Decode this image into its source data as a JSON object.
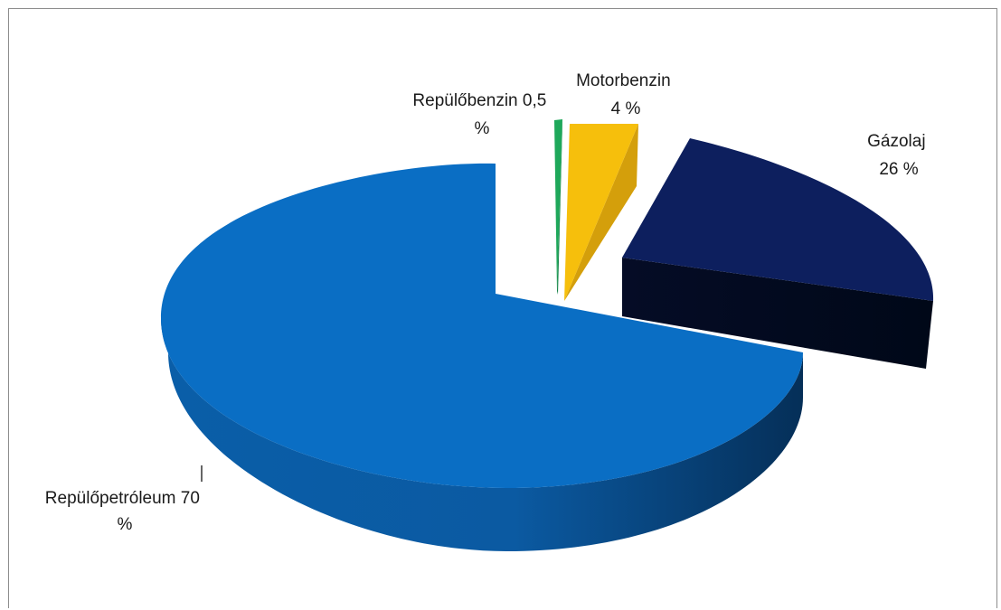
{
  "chart_data": {
    "type": "pie",
    "style": "3d-exploded",
    "title": "",
    "slices": [
      {
        "line1": "Repülőpetróleum 70",
        "line2": "%",
        "value": 70,
        "color": "#0a6ec4"
      },
      {
        "line1": "Repülőbenzin 0,5",
        "line2": "%",
        "value": 0.5,
        "color": "#1ea85a"
      },
      {
        "line1": "Motorbenzin",
        "line2": "4 %",
        "value": 4,
        "color": "#f6bf0c"
      },
      {
        "line1": "Gázolaj",
        "line2": "26 %",
        "value": 26,
        "color": "#0d1f5e"
      }
    ]
  }
}
